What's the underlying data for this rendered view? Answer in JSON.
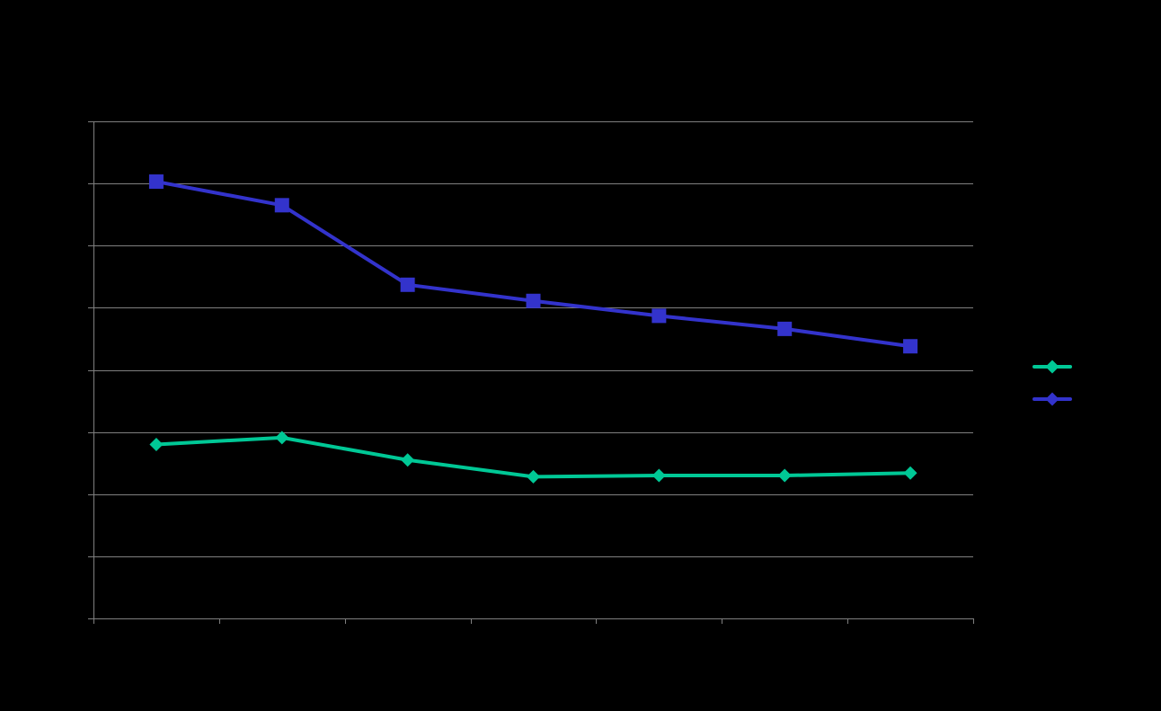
{
  "chart_data": {
    "type": "line",
    "title": "",
    "xlabel": "",
    "ylabel": "",
    "categories": [
      "",
      "",
      "",
      "",
      "",
      "",
      ""
    ],
    "ylim": [
      0,
      8
    ],
    "grid": true,
    "legend_position": "right",
    "series": [
      {
        "name": "",
        "color": "#00c896",
        "marker": "diamond",
        "values": [
          2.8,
          2.91,
          2.55,
          2.28,
          2.3,
          2.3,
          2.34
        ]
      },
      {
        "name": "",
        "color": "#3333cc",
        "marker": "square",
        "values": [
          7.03,
          6.65,
          5.37,
          5.11,
          4.87,
          4.66,
          4.38
        ]
      }
    ]
  }
}
